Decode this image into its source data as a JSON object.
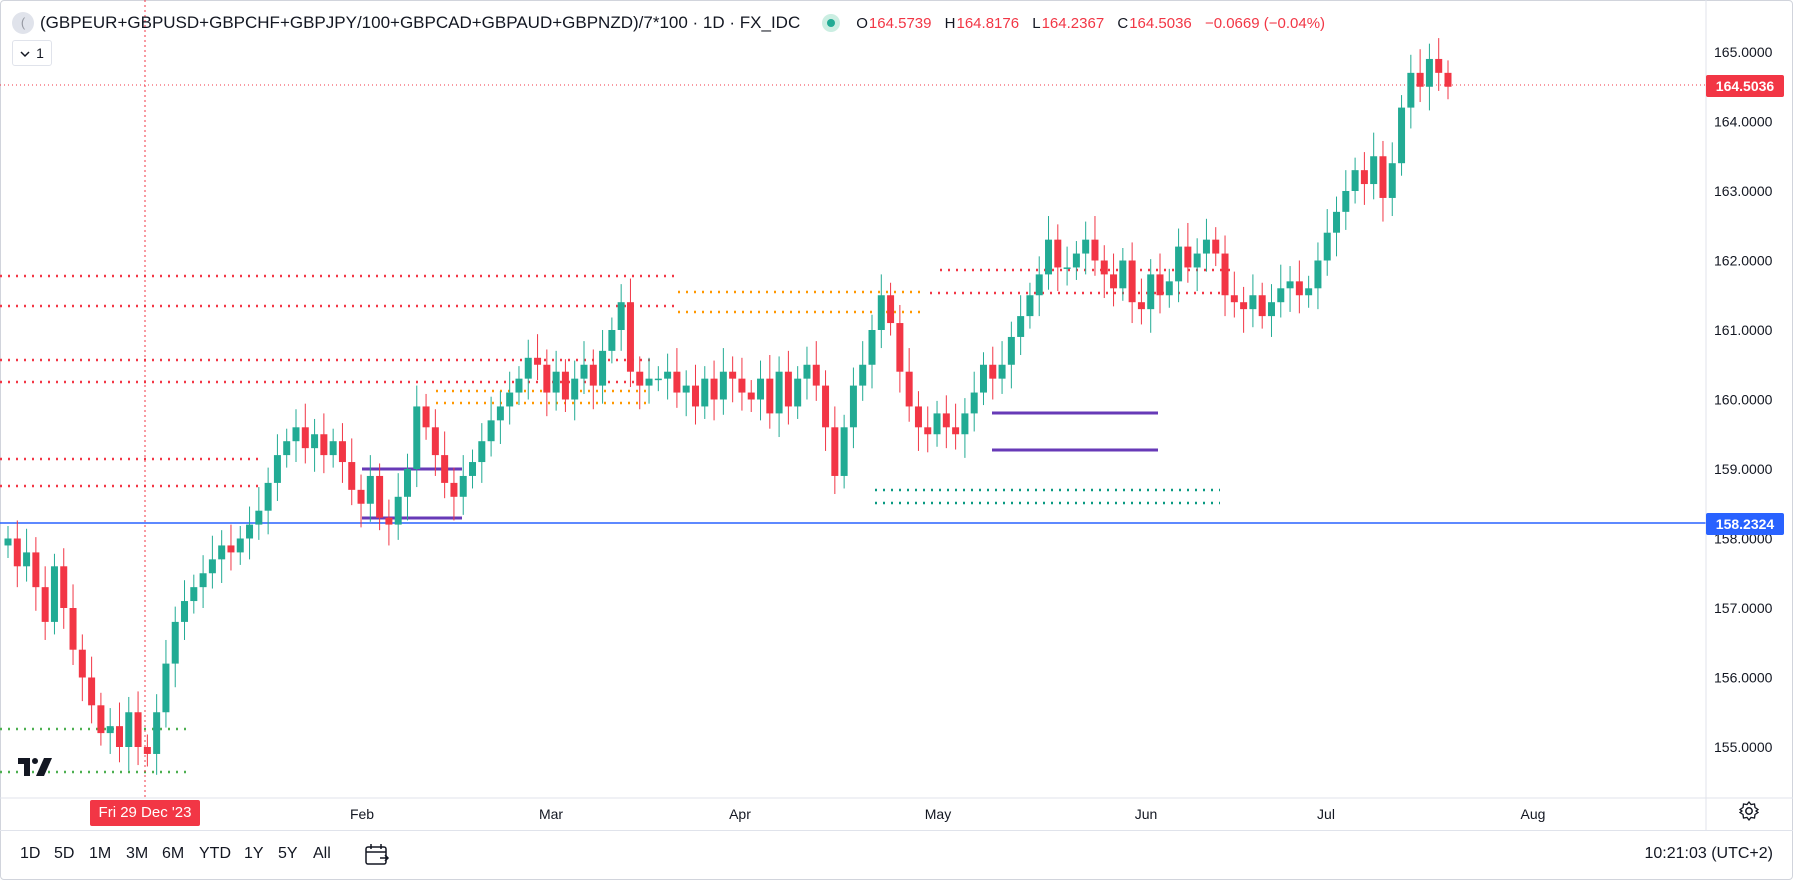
{
  "legend": {
    "symbol": "(GBPEUR+GBPUSD+GBPCHF+GBPJPY/100+GBPCAD+GBPAUD+GBPNZD)/7*100",
    "separator1": " · ",
    "interval": "1D",
    "separator2": " · ",
    "source": "FX_IDC",
    "open_label": "O",
    "open": "164.5739",
    "high_label": "H",
    "high": "164.8176",
    "low_label": "L",
    "low": "164.2367",
    "close_label": "C",
    "close": "164.5036",
    "change": "−0.0669 (−0.04%)",
    "collapse_count": "1"
  },
  "price_tags": {
    "last_price": "164.5036",
    "horizontal_line": "158.2324",
    "last_color": "#f23645",
    "line_color": "#2962ff"
  },
  "crosshair_date": "Fri 29 Dec '23",
  "toolbar": {
    "ranges": [
      "1D",
      "5D",
      "1M",
      "3M",
      "6M",
      "YTD",
      "1Y",
      "5Y",
      "All"
    ],
    "clock": "10:21:03 (UTC+2)"
  },
  "chart_data": {
    "type": "candlestick",
    "yaxis_ticks": [
      "165.0000",
      "164.0000",
      "163.0000",
      "162.0000",
      "161.0000",
      "160.0000",
      "159.0000",
      "158.0000",
      "157.0000",
      "156.0000",
      "155.0000"
    ],
    "ylim": [
      154.35,
      165.65
    ],
    "xaxis_ticks": [
      "Feb",
      "Mar",
      "Apr",
      "May",
      "Jun",
      "Jul",
      "Aug"
    ],
    "up_color": "#22ab94",
    "down_color": "#f23645",
    "close_series": [
      158.0,
      157.6,
      157.8,
      157.3,
      156.8,
      157.6,
      157.0,
      156.4,
      156.0,
      155.6,
      155.2,
      155.3,
      155.0,
      155.5,
      155.0,
      154.9,
      155.5,
      156.2,
      156.8,
      157.1,
      157.3,
      157.5,
      157.7,
      157.9,
      157.8,
      158.0,
      158.2,
      158.4,
      158.8,
      159.2,
      159.4,
      159.6,
      159.3,
      159.5,
      159.2,
      159.4,
      159.1,
      158.7,
      158.5,
      158.9,
      158.3,
      158.2,
      158.6,
      159.0,
      159.9,
      159.6,
      159.2,
      158.8,
      158.6,
      158.9,
      159.1,
      159.4,
      159.7,
      159.9,
      160.1,
      160.3,
      160.6,
      160.5,
      160.1,
      160.4,
      160.0,
      160.3,
      160.5,
      160.2,
      160.7,
      161.0,
      161.4,
      160.4,
      160.2,
      160.3,
      160.3,
      160.4,
      160.1,
      160.2,
      159.9,
      160.3,
      160.0,
      160.4,
      160.3,
      160.1,
      160.0,
      160.3,
      159.8,
      160.4,
      159.9,
      160.3,
      160.5,
      160.2,
      159.6,
      158.9,
      159.6,
      160.2,
      160.5,
      161.0,
      161.5,
      161.1,
      160.4,
      159.9,
      159.6,
      159.5,
      159.8,
      159.6,
      159.5,
      159.8,
      160.1,
      160.5,
      160.3,
      160.5,
      160.9,
      161.2,
      161.5,
      161.8,
      162.3,
      161.9,
      161.9,
      162.1,
      162.3,
      162.0,
      161.8,
      161.6,
      162.0,
      161.4,
      161.3,
      161.8,
      161.5,
      161.7,
      162.2,
      161.9,
      162.1,
      162.3,
      162.1,
      161.5,
      161.4,
      161.3,
      161.5,
      161.2,
      161.4,
      161.6,
      161.7,
      161.5,
      161.6,
      162.0,
      162.4,
      162.7,
      163.0,
      163.3,
      163.1,
      163.5,
      162.9,
      163.4,
      164.2,
      164.7,
      164.5,
      164.9,
      164.7,
      164.5
    ]
  }
}
